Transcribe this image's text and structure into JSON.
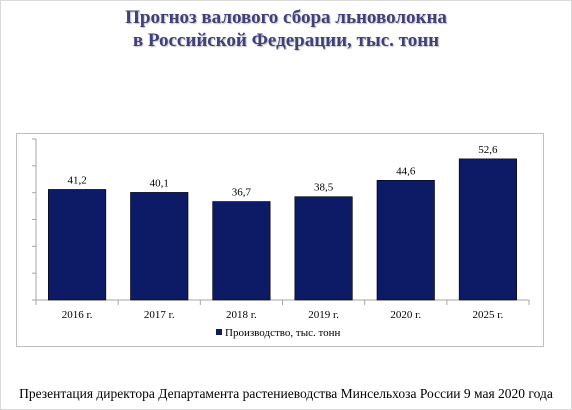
{
  "title": {
    "line1": "Прогноз валового сбора льноволокна",
    "line2": "в Российской Федерации, тыс. тонн"
  },
  "footer": "Презентация директора Департамента растениеводства Минсельхоза России 9 мая 2020 года",
  "colors": {
    "bar": "#0d1a66",
    "title": "#40407a"
  },
  "chart_data": {
    "type": "bar",
    "categories": [
      "2016 г.",
      "2017 г.",
      "2018 г.",
      "2019 г.",
      "2020 г.",
      "2025 г."
    ],
    "series": [
      {
        "name": "Производство, тыс. тонн",
        "values": [
          41.2,
          40.1,
          36.7,
          38.5,
          44.6,
          52.6
        ]
      }
    ],
    "value_labels": [
      "41,2",
      "40,1",
      "36,7",
      "38,5",
      "44,6",
      "52,6"
    ],
    "ylim": [
      0,
      60
    ],
    "y_gridlines": false,
    "y_tick_labels": false,
    "legend": "bottom"
  }
}
